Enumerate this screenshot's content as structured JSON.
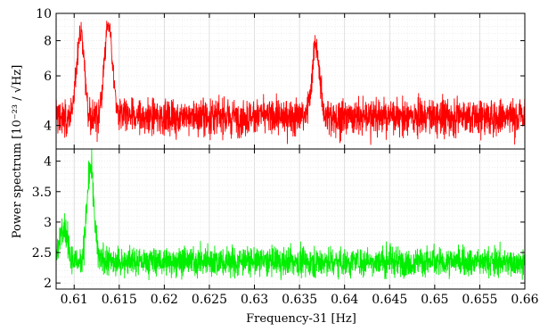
{
  "chart_data": {
    "type": "line",
    "xlabel": "Frequency-31 [Hz]",
    "ylabel": "Power spectrum [10⁻²³ / √Hz]",
    "xlim": [
      0.608,
      0.66
    ],
    "x_ticks": [
      "0.61",
      "0.615",
      "0.62",
      "0.625",
      "0.63",
      "0.635",
      "0.64",
      "0.645",
      "0.65",
      "0.655",
      "0.66"
    ],
    "grid": true,
    "panels": [
      {
        "name": "top",
        "yscale": "log",
        "ylim": [
          3.3,
          10
        ],
        "y_ticks": [
          "4",
          "6",
          "8",
          "10"
        ],
        "color": "#ff0000",
        "baseline": 4.3,
        "noise": 0.45,
        "peaks": [
          {
            "x": 0.6107,
            "value": 9.2
          },
          {
            "x": 0.6138,
            "value": 10.0
          },
          {
            "x": 0.6368,
            "value": 8.1
          }
        ]
      },
      {
        "name": "bottom",
        "yscale": "linear",
        "ylim": [
          1.9,
          4.2
        ],
        "y_ticks": [
          "2",
          "2.5",
          "3",
          "3.5",
          "4"
        ],
        "color": "#00ee00",
        "baseline": 2.35,
        "noise": 0.17,
        "peaks": [
          {
            "x": 0.6118,
            "value": 4.1
          },
          {
            "x": 0.6088,
            "value": 3.05
          }
        ]
      }
    ]
  }
}
